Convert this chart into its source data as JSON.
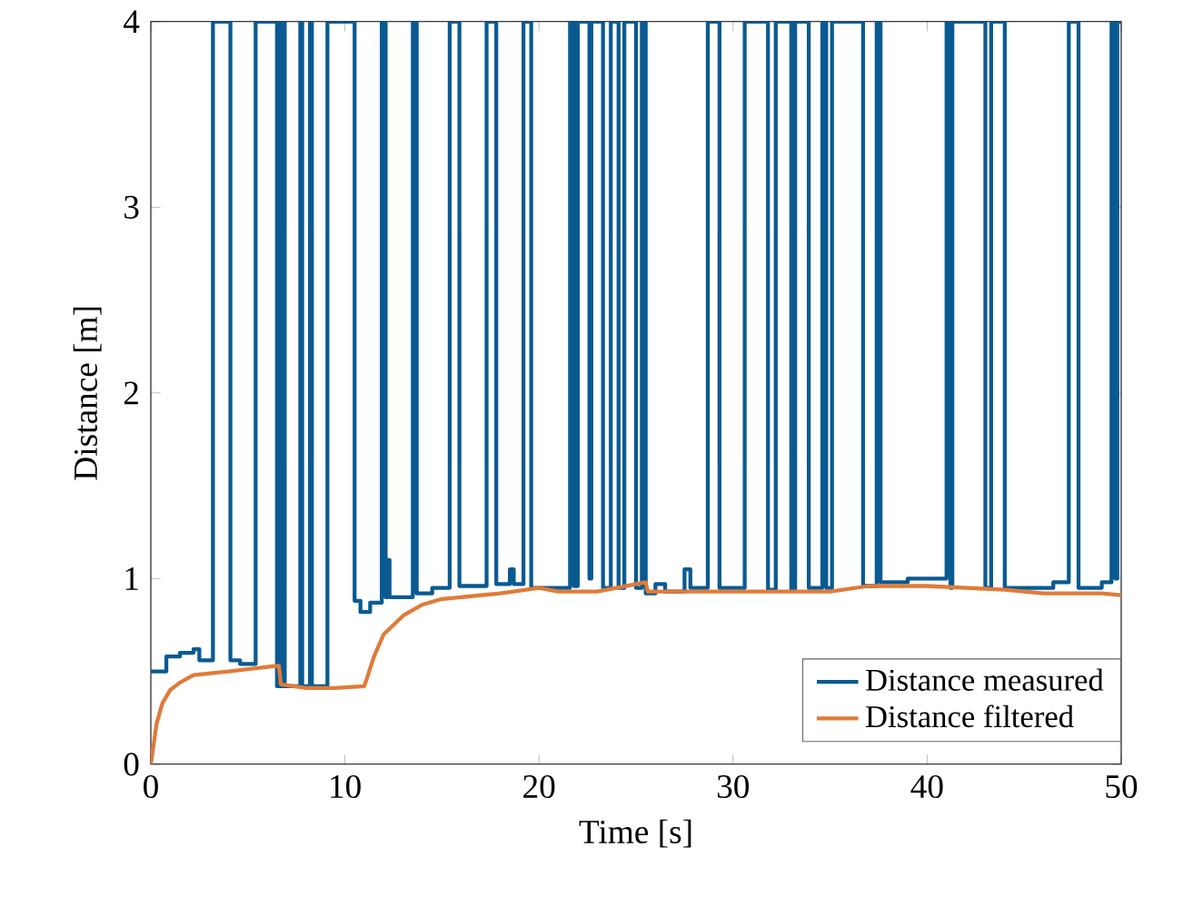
{
  "chart_data": {
    "type": "line",
    "xlabel": "Time [s]",
    "ylabel": "Distance [m]",
    "xlim": [
      0,
      50
    ],
    "ylim": [
      0,
      4
    ],
    "xticks": [
      0,
      10,
      20,
      30,
      40,
      50
    ],
    "yticks": [
      0,
      1,
      2,
      3,
      4
    ],
    "legend": "bottom right",
    "series": [
      {
        "name": "Distance measured",
        "type": "step",
        "color": "#0a5a92",
        "x": [
          0,
          0.8,
          1.5,
          2.2,
          2.5,
          3.2,
          4.1,
          4.6,
          5.4,
          6.5,
          6.6,
          6.7,
          6.8,
          6.9,
          7.7,
          7.8,
          8.2,
          8.3,
          9.1,
          10.5,
          10.8,
          11.3,
          11.9,
          12.1,
          12.2,
          12.3,
          13.5,
          13.7,
          14.5,
          15.4,
          15.9,
          17.3,
          17.8,
          18.5,
          18.7,
          19.2,
          19.6,
          21.6,
          21.8,
          22.0,
          22.6,
          22.7,
          23.3,
          23.7,
          24.1,
          24.4,
          25.0,
          25.3,
          25.5,
          26.0,
          26.5,
          27.5,
          27.8,
          28.7,
          29.3,
          30.6,
          31.8,
          32.2,
          33.0,
          33.2,
          33.9,
          34.6,
          34.8,
          35.1,
          36.7,
          37.4,
          37.6,
          39.0,
          41.0,
          41.2,
          41.3,
          43.0,
          43.3,
          44.0,
          46.5,
          47.3,
          47.8,
          49.0,
          49.5,
          49.7,
          49.8,
          50.0
        ],
        "values": [
          0.5,
          0.58,
          0.6,
          0.62,
          0.56,
          4,
          0.56,
          0.54,
          4,
          0.42,
          4,
          0.42,
          4,
          0.42,
          4,
          0.42,
          4,
          0.42,
          4,
          0.88,
          0.82,
          0.87,
          4,
          0.9,
          1.1,
          0.9,
          4,
          0.92,
          0.95,
          4,
          0.96,
          4,
          0.97,
          1.05,
          0.97,
          4,
          0.95,
          4,
          0.96,
          4,
          1.0,
          4,
          0.95,
          4,
          0.95,
          4,
          0.95,
          4,
          0.92,
          0.97,
          0.93,
          1.05,
          0.95,
          4,
          0.95,
          4,
          0.94,
          4,
          0.94,
          4,
          0.95,
          4,
          0.95,
          4,
          0.96,
          4,
          0.98,
          1.0,
          4,
          0.95,
          4,
          0.95,
          4,
          0.95,
          0.98,
          4,
          0.95,
          0.98,
          4,
          1.0,
          4,
          4
        ]
      },
      {
        "name": "Distance filtered",
        "type": "line",
        "color": "#e07b39",
        "x": [
          0,
          0.3,
          0.6,
          1.0,
          1.5,
          2.2,
          4.0,
          6.5,
          6.6,
          6.7,
          8.0,
          9.5,
          11.0,
          11.5,
          12.0,
          13.0,
          14.0,
          15.0,
          18.0,
          20.0,
          21.0,
          23.0,
          25.0,
          25.5,
          25.6,
          30.0,
          35.0,
          37.0,
          40.0,
          44.0,
          46.0,
          49.0,
          50.0
        ],
        "values": [
          0,
          0.22,
          0.33,
          0.4,
          0.44,
          0.48,
          0.5,
          0.53,
          0.53,
          0.43,
          0.41,
          0.41,
          0.42,
          0.58,
          0.7,
          0.8,
          0.86,
          0.89,
          0.92,
          0.95,
          0.93,
          0.93,
          0.97,
          0.98,
          0.93,
          0.93,
          0.93,
          0.96,
          0.96,
          0.94,
          0.92,
          0.92,
          0.91
        ]
      }
    ]
  }
}
